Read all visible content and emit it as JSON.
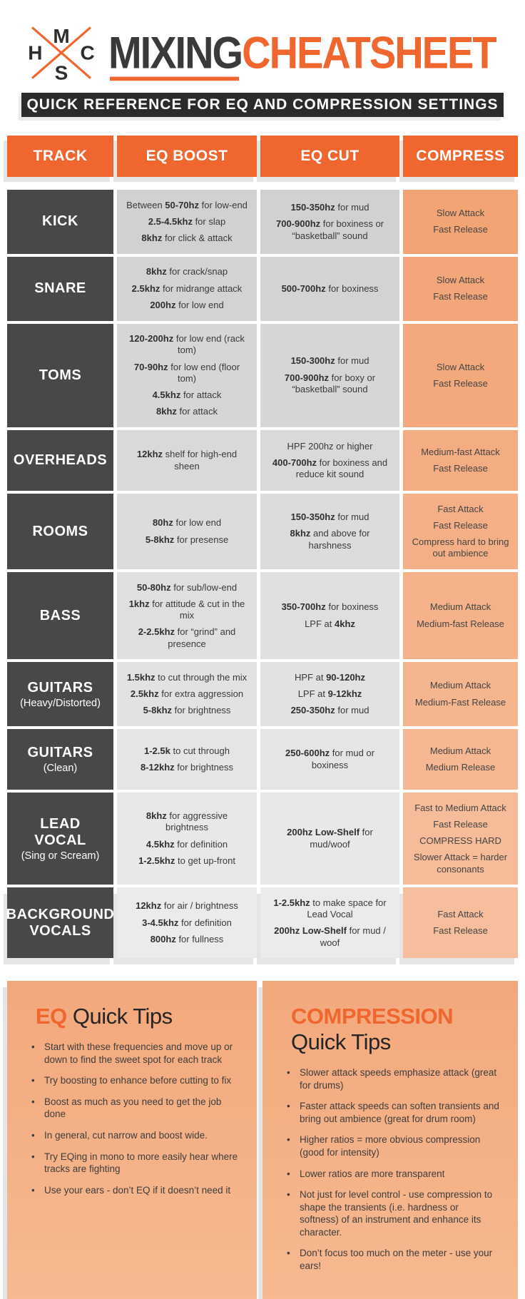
{
  "header": {
    "logo": {
      "letters": [
        "M",
        "H",
        "C",
        "S"
      ]
    },
    "title_dark": "MIXING",
    "title_orange": "CHEATSHEET",
    "subtitle": "QUICK REFERENCE FOR EQ AND COMPRESSION SETTINGS"
  },
  "colors": {
    "accent": "#f0662f",
    "dark_bar": "#2b2b2b",
    "track_bg": "#48484a",
    "text_dark": "#3c3c3c",
    "gray_cell": "#d3d3d5",
    "salmon_cell": "#f3a475",
    "page_bg": "#ffffff"
  },
  "table": {
    "columns": [
      "TRACK",
      "EQ BOOST",
      "EQ CUT",
      "COMPRESS"
    ],
    "rows": [
      {
        "track": "KICK",
        "track_sub": "",
        "eq_boost": [
          "Between **50-70hz** for low-end",
          "**2.5-4.5khz** for slap",
          "**8khz** for click & attack"
        ],
        "eq_cut": [
          "**150-350hz** for mud",
          "**700-900hz** for boxiness or “basketball” sound"
        ],
        "compress": [
          "Slow Attack",
          "Fast Release"
        ]
      },
      {
        "track": "SNARE",
        "track_sub": "",
        "eq_boost": [
          "**8khz** for crack/snap",
          "**2.5khz** for midrange attack",
          "**200hz** for low end"
        ],
        "eq_cut": [
          "**500-700hz** for boxiness"
        ],
        "compress": [
          "Slow Attack",
          "Fast Release"
        ]
      },
      {
        "track": "TOMS",
        "track_sub": "",
        "eq_boost": [
          "**120-200hz** for low end (rack tom)",
          "**70-90hz** for low end (floor tom)",
          "**4.5khz** for attack",
          "**8khz** for attack"
        ],
        "eq_cut": [
          "**150-300hz** for mud",
          "**700-900hz** for boxy or “basketball” sound"
        ],
        "compress": [
          "Slow Attack",
          "Fast Release"
        ]
      },
      {
        "track": "OVERHEADS",
        "track_sub": "",
        "eq_boost": [
          "**12khz** shelf for high-end sheen"
        ],
        "eq_cut": [
          "HPF 200hz or higher",
          "**400-700hz** for boxiness and reduce kit sound"
        ],
        "compress": [
          "Medium-fast Attack",
          "Fast Release"
        ]
      },
      {
        "track": "ROOMS",
        "track_sub": "",
        "eq_boost": [
          "**80hz** for low end",
          "**5-8khz** for presense"
        ],
        "eq_cut": [
          "**150-350hz** for mud",
          "**8khz** and above for harshness"
        ],
        "compress": [
          "Fast Attack",
          "Fast Release",
          "Compress hard to bring out ambience"
        ]
      },
      {
        "track": "BASS",
        "track_sub": "",
        "eq_boost": [
          "**50-80hz** for sub/low-end",
          "**1khz** for attitude & cut in the mix",
          "**2-2.5khz** for “grind” and presence"
        ],
        "eq_cut": [
          "**350-700hz** for boxiness",
          "LPF at **4khz**"
        ],
        "compress": [
          "Medium Attack",
          "Medium-fast Release"
        ]
      },
      {
        "track": "GUITARS",
        "track_sub": "(Heavy/Distorted)",
        "eq_boost": [
          "**1.5khz** to cut through the mix",
          "**2.5khz** for extra aggression",
          "**5-8khz** for brightness"
        ],
        "eq_cut": [
          "HPF at **90-120hz**",
          "LPF at **9-12khz**",
          "**250-350hz** for mud"
        ],
        "compress": [
          "Medium Attack",
          "Medium-Fast Release"
        ]
      },
      {
        "track": "GUITARS",
        "track_sub": "(Clean)",
        "eq_boost": [
          "**1-2.5k** to cut through",
          "**8-12khz** for brightness"
        ],
        "eq_cut": [
          "**250-600hz** for mud or boxiness"
        ],
        "compress": [
          "Medium Attack",
          "Medium Release"
        ]
      },
      {
        "track": "LEAD VOCAL",
        "track_sub": "(Sing or Scream)",
        "eq_boost": [
          "**8khz** for aggressive brightness",
          "**4.5khz** for definition",
          "**1-2.5khz** to get up-front"
        ],
        "eq_cut": [
          "**200hz Low-Shelf** for mud/woof"
        ],
        "compress": [
          "Fast to Medium Attack",
          "Fast Release",
          "COMPRESS HARD",
          "Slower Attack = harder consonants"
        ]
      },
      {
        "track": "BACKGROUND VOCALS",
        "track_sub": "",
        "eq_boost": [
          "**12khz** for air / brightness",
          "**3-4.5khz** for definition",
          "**800hz** for fullness"
        ],
        "eq_cut": [
          "**1-2.5khz** to make space for Lead Vocal",
          "**200hz Low-Shelf** for mud / woof"
        ],
        "compress": [
          "Fast Attack",
          "Fast Release"
        ]
      }
    ]
  },
  "tips": [
    {
      "title_accent": "EQ",
      "title_rest": " Quick Tips",
      "bullets": [
        "Start with these frequencies and move up or down to find the sweet spot for each track",
        "Try boosting to enhance before cutting to fix",
        "Boost as much as you need to get the job done",
        "In general, cut narrow and boost wide.",
        "Try EQing in mono to more easily hear where tracks are fighting",
        "Use your ears - don’t EQ if it doesn’t need it"
      ]
    },
    {
      "title_accent": "COMPRESSION",
      "title_rest": " Quick Tips",
      "bullets": [
        "Slower attack speeds emphasize attack (great for drums)",
        "Faster attack speeds can soften transients and bring out ambience (great for drum room)",
        "Higher ratios = more obvious compression (good for intensity)",
        "Lower ratios are more transparent",
        "Not just for level control - use compression to shape the transients (i.e. hardness or softness) of an instrument and enhance its character.",
        "Don’t focus too much on the meter - use your ears!"
      ]
    }
  ]
}
